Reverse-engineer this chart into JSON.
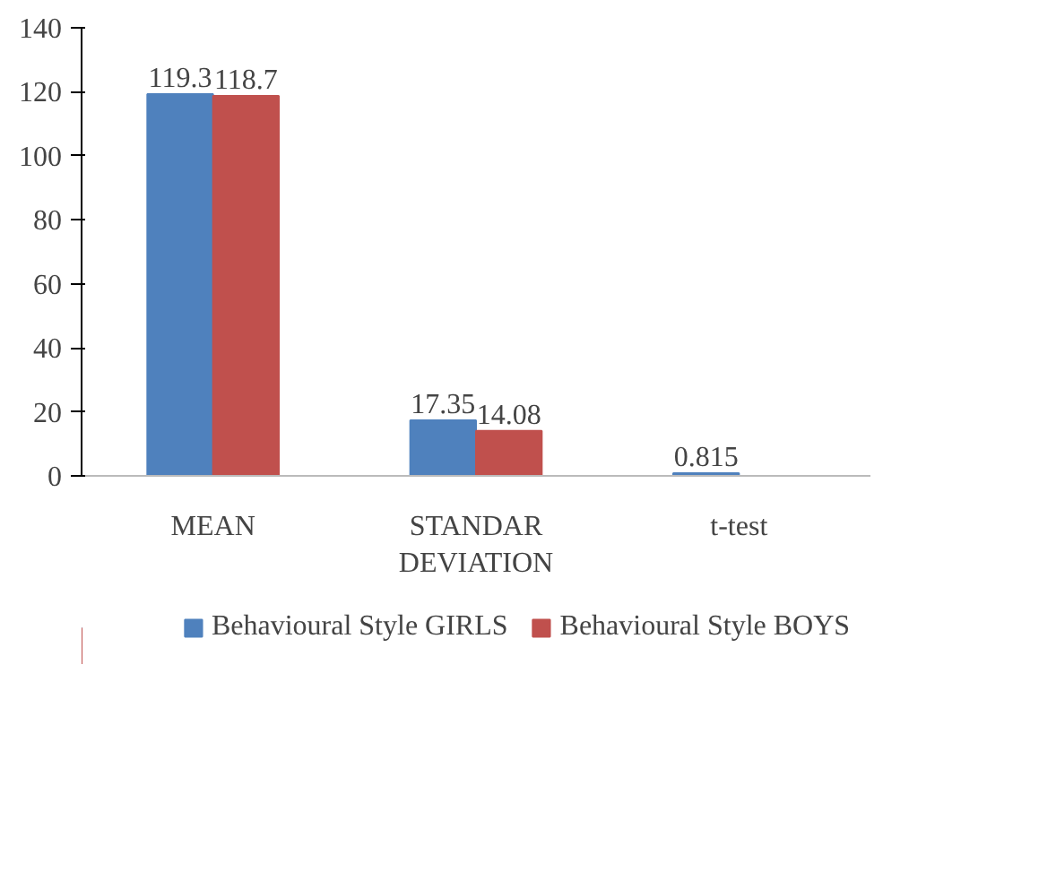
{
  "chart_data": {
    "type": "bar",
    "categories": [
      "MEAN",
      "STANDAR DEVIATION",
      "t-test"
    ],
    "series": [
      {
        "name": "Behavioural Style GIRLS",
        "color": "#4f81bd",
        "values": [
          119.3,
          17.35,
          0.815
        ]
      },
      {
        "name": "Behavioural Style BOYS",
        "color": "#c0504d",
        "values": [
          118.7,
          14.08,
          null
        ]
      }
    ],
    "ylim": [
      0,
      140
    ],
    "yticks": [
      0,
      20,
      40,
      60,
      80,
      100,
      120,
      140
    ],
    "grid": false,
    "legend": "bottom",
    "data_labels": true
  }
}
